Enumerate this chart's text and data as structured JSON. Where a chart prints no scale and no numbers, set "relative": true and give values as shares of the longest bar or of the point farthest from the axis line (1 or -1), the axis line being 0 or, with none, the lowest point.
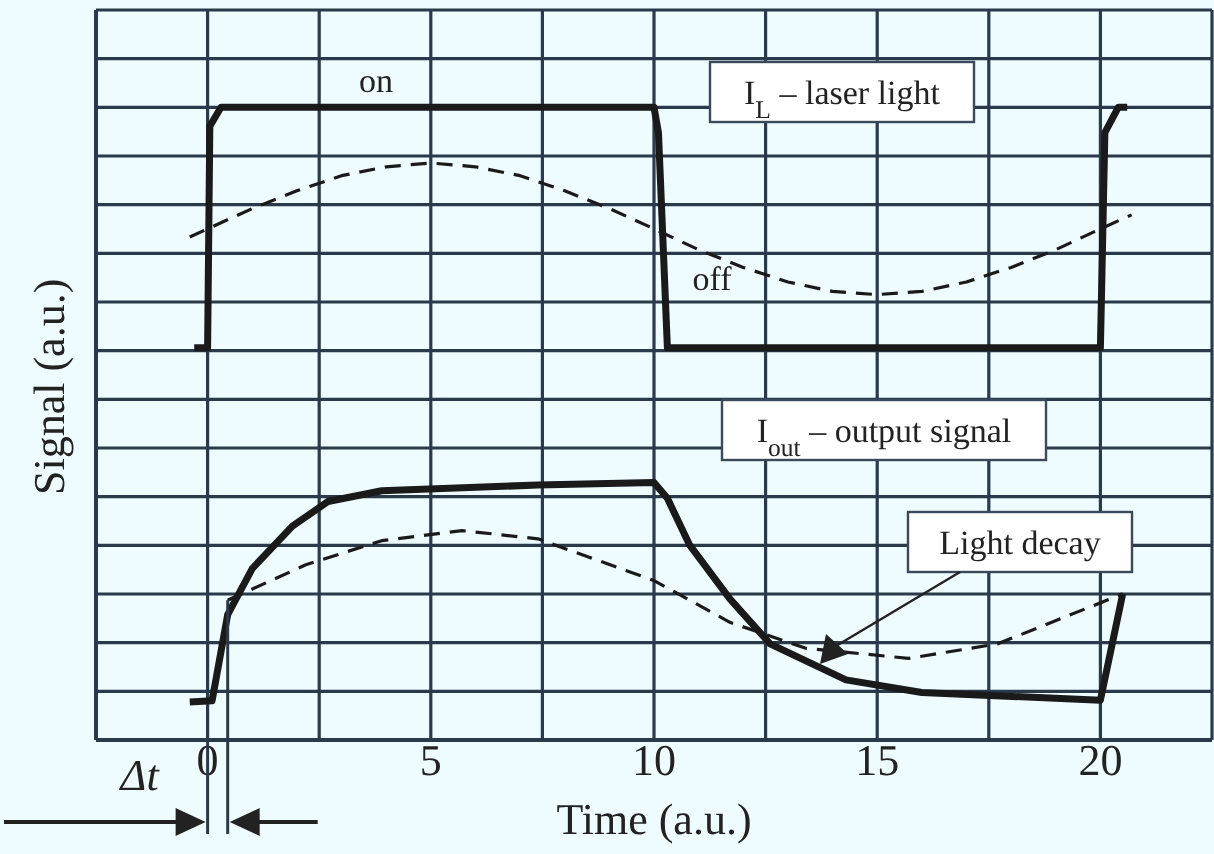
{
  "chart_data": {
    "type": "line",
    "relative": true,
    "xlabel": "Time (a.u.)",
    "ylabel": "Signal (a.u.)",
    "xlim": [
      -2.5,
      22.5
    ],
    "xticks": [
      {
        "value": -2.5,
        "label": null
      },
      0,
      {
        "value": 2.5,
        "label": null
      },
      5,
      {
        "value": 7.5,
        "label": null
      },
      10,
      {
        "value": 12.5,
        "label": null
      },
      15,
      {
        "value": 17.5,
        "label": null
      },
      20,
      {
        "value": 22.5,
        "label": null
      }
    ],
    "grid": true,
    "series": [
      {
        "color": "#1a1a1a",
        "line_style": "solid",
        "x": [
          -0.3,
          0,
          0.05,
          0.3,
          10,
          10.1,
          10.3,
          20,
          20.1,
          20.4,
          20.6
        ],
        "values": [
          0.62,
          0.62,
          0.97,
          1,
          1,
          0.96,
          0.62,
          0.62,
          0.96,
          1,
          1
        ]
      },
      {
        "color": "#1a1a1a",
        "line_style": "dashed",
        "x": [
          -0.4,
          0,
          1,
          2,
          3,
          4,
          5,
          6,
          7,
          8,
          9,
          10,
          11,
          12,
          13,
          14,
          15,
          16,
          17,
          18,
          19,
          20,
          20.7
        ],
        "values": [
          0.795,
          0.808,
          0.84,
          0.868,
          0.892,
          0.906,
          0.912,
          0.906,
          0.892,
          0.868,
          0.84,
          0.808,
          0.775,
          0.747,
          0.724,
          0.709,
          0.704,
          0.709,
          0.724,
          0.747,
          0.775,
          0.808,
          0.83
        ]
      },
      {
        "color": "#1a1a1a",
        "line_style": "solid",
        "x": [
          -0.4,
          0.1,
          0.45,
          1,
          1.9,
          2.7,
          3.9,
          7.4,
          10,
          10.3,
          10.8,
          11.7,
          12.6,
          14.3,
          16,
          20,
          20.5
        ],
        "values": [
          0.06,
          0.062,
          0.198,
          0.271,
          0.338,
          0.377,
          0.394,
          0.403,
          0.407,
          0.382,
          0.308,
          0.223,
          0.152,
          0.095,
          0.075,
          0.063,
          0.231
        ]
      },
      {
        "color": "#1a1a1a",
        "line_style": "dashed",
        "x": [
          0.45,
          2.2,
          3.9,
          5.7,
          7.4,
          10,
          11.7,
          13.4,
          15.7,
          17.7,
          20.5
        ],
        "values": [
          0.221,
          0.277,
          0.315,
          0.331,
          0.318,
          0.252,
          0.186,
          0.145,
          0.129,
          0.152,
          0.231
        ]
      }
    ],
    "annotations": [
      "on",
      "off",
      "I$_{L}$ – laser light",
      "I$_{out}$ – output signal",
      "Light decay",
      "Δt"
    ]
  }
}
